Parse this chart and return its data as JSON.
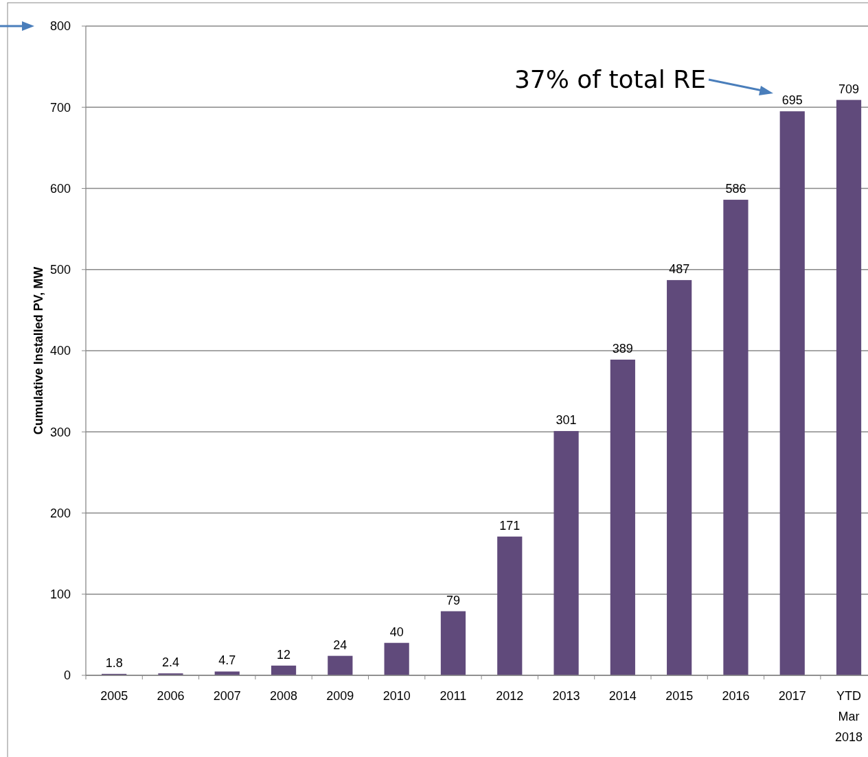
{
  "chart_data": {
    "type": "bar",
    "ylabel": "Cumulative Installed PV, MW",
    "categories": [
      "2005",
      "2006",
      "2007",
      "2008",
      "2009",
      "2010",
      "2011",
      "2012",
      "2013",
      "2014",
      "2015",
      "2016",
      "2017",
      "YTD Mar 2018"
    ],
    "values": [
      1.8,
      2.4,
      4.7,
      12,
      24,
      40,
      79,
      171,
      301,
      389,
      487,
      586,
      695,
      709
    ],
    "color": "#604a7b",
    "ylim": [
      0,
      800
    ],
    "yticks": [
      0,
      100,
      200,
      300,
      400,
      500,
      600,
      700,
      800
    ],
    "grid": "y",
    "data_labels": true,
    "annotations": [
      "37% of total RE"
    ]
  }
}
